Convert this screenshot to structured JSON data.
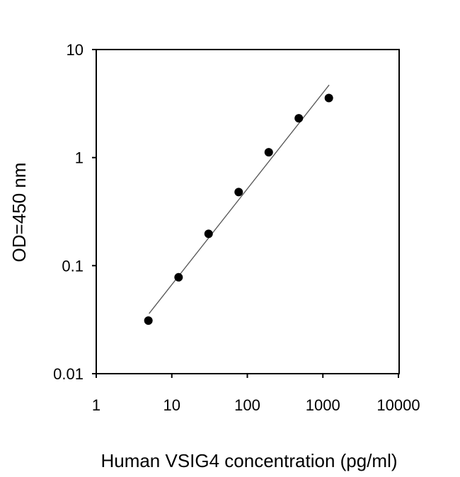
{
  "chart_data": {
    "type": "scatter",
    "title": "",
    "xlabel": "Human VSIG4 concentration (pg/ml)",
    "ylabel": "OD=450 nm",
    "xscale": "log",
    "yscale": "log",
    "xlim": [
      1,
      10000
    ],
    "ylim": [
      0.01,
      10
    ],
    "xticks": [
      "1",
      "10",
      "100",
      "1000",
      "10000"
    ],
    "yticks": [
      "0.01",
      "0.1",
      "1",
      "10"
    ],
    "grid": false,
    "legend": "none",
    "series": [
      {
        "type": "scatter",
        "x": [
          4.9,
          12.3,
          30.7,
          76.8,
          192,
          480,
          1200
        ],
        "y": [
          0.031,
          0.078,
          0.197,
          0.48,
          1.12,
          2.31,
          3.56
        ],
        "color": "#000000"
      },
      {
        "type": "line",
        "x": [
          5.0,
          1210
        ],
        "y": [
          0.036,
          4.7
        ],
        "color": "#555555"
      }
    ]
  }
}
